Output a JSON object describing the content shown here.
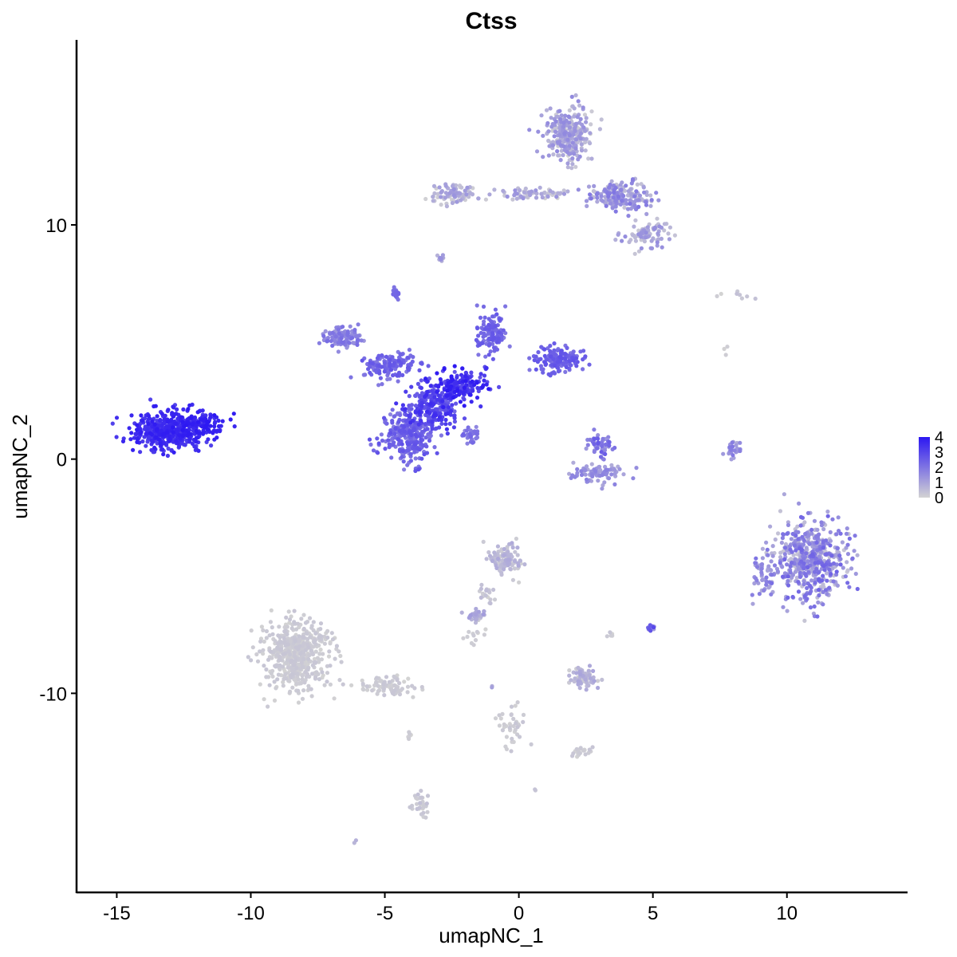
{
  "chart_data": {
    "type": "scatter",
    "title": "Ctss",
    "xlabel": "umapNC_1",
    "ylabel": "umapNC_2",
    "xlim": [
      -16.5,
      14.5
    ],
    "ylim": [
      -18.5,
      17.9
    ],
    "x_ticks": [
      -15,
      -10,
      -5,
      0,
      5,
      10
    ],
    "x_tick_labels": [
      "-15",
      "-10",
      "-5",
      "0",
      "5",
      "10"
    ],
    "y_ticks": [
      10,
      0,
      -10
    ],
    "y_tick_labels": [
      "10",
      "0",
      "-10"
    ],
    "grid": false,
    "legend": {
      "placement": "right",
      "type": "colorbar",
      "range": [
        0,
        4
      ],
      "ticks": [
        4,
        3,
        2,
        1,
        0
      ],
      "tick_labels": [
        "4",
        "3",
        "2",
        "1",
        "0"
      ]
    },
    "colors": {
      "low": "#d3d3d3",
      "high": "#2c17f2"
    },
    "clusters": [
      {
        "center": [
          -13.1,
          1.2
        ],
        "spread": [
          1.2,
          0.7
        ],
        "count": 420,
        "expr": [
          3.0,
          3.9
        ]
      },
      {
        "center": [
          -12.0,
          1.5
        ],
        "spread": [
          0.8,
          0.5
        ],
        "count": 120,
        "expr": [
          3.4,
          4.0
        ]
      },
      {
        "center": [
          -4.2,
          1.0
        ],
        "spread": [
          0.9,
          1.0
        ],
        "count": 260,
        "expr": [
          1.7,
          2.8
        ]
      },
      {
        "center": [
          -3.2,
          2.3
        ],
        "spread": [
          0.9,
          0.9
        ],
        "count": 240,
        "expr": [
          2.3,
          3.6
        ]
      },
      {
        "center": [
          -2.2,
          3.1
        ],
        "spread": [
          1.0,
          0.6
        ],
        "count": 160,
        "expr": [
          2.6,
          4.0
        ]
      },
      {
        "center": [
          -4.8,
          4.0
        ],
        "spread": [
          0.9,
          0.5
        ],
        "count": 140,
        "expr": [
          1.8,
          2.7
        ]
      },
      {
        "center": [
          -6.6,
          5.2
        ],
        "spread": [
          0.6,
          0.4
        ],
        "count": 110,
        "expr": [
          1.2,
          2.2
        ]
      },
      {
        "center": [
          -1.0,
          5.3
        ],
        "spread": [
          0.5,
          0.8
        ],
        "count": 120,
        "expr": [
          1.8,
          2.7
        ]
      },
      {
        "center": [
          1.5,
          4.3
        ],
        "spread": [
          0.9,
          0.5
        ],
        "count": 150,
        "expr": [
          1.9,
          2.8
        ]
      },
      {
        "center": [
          -4.6,
          7.1
        ],
        "spread": [
          0.15,
          0.2
        ],
        "count": 22,
        "expr": [
          1.8,
          2.4
        ]
      },
      {
        "center": [
          -1.8,
          1.0
        ],
        "spread": [
          0.4,
          0.4
        ],
        "count": 30,
        "expr": [
          1.6,
          2.4
        ]
      },
      {
        "center": [
          1.8,
          13.8
        ],
        "spread": [
          0.8,
          1.0
        ],
        "count": 280,
        "expr": [
          0.0,
          1.6
        ]
      },
      {
        "center": [
          3.8,
          11.2
        ],
        "spread": [
          1.0,
          0.6
        ],
        "count": 180,
        "expr": [
          0.3,
          2.0
        ]
      },
      {
        "center": [
          4.8,
          9.6
        ],
        "spread": [
          0.7,
          0.5
        ],
        "count": 80,
        "expr": [
          0.2,
          1.5
        ]
      },
      {
        "center": [
          -2.4,
          11.3
        ],
        "spread": [
          0.8,
          0.35
        ],
        "count": 90,
        "expr": [
          0.0,
          1.4
        ]
      },
      {
        "center": [
          0.5,
          11.3
        ],
        "spread": [
          1.2,
          0.25
        ],
        "count": 60,
        "expr": [
          0.0,
          1.4
        ]
      },
      {
        "center": [
          -2.9,
          8.6
        ],
        "spread": [
          0.1,
          0.15
        ],
        "count": 10,
        "expr": [
          0.5,
          1.8
        ]
      },
      {
        "center": [
          3.0,
          -0.6
        ],
        "spread": [
          0.9,
          0.35
        ],
        "count": 90,
        "expr": [
          0.8,
          1.8
        ]
      },
      {
        "center": [
          3.0,
          0.6
        ],
        "spread": [
          0.4,
          0.4
        ],
        "count": 50,
        "expr": [
          1.2,
          2.6
        ]
      },
      {
        "center": [
          8.0,
          0.4
        ],
        "spread": [
          0.25,
          0.4
        ],
        "count": 25,
        "expr": [
          0.8,
          2.0
        ]
      },
      {
        "center": [
          10.9,
          -4.3
        ],
        "spread": [
          1.2,
          1.5
        ],
        "count": 520,
        "expr": [
          0.2,
          2.4
        ]
      },
      {
        "center": [
          9.1,
          -5.0
        ],
        "spread": [
          0.4,
          0.8
        ],
        "count": 50,
        "expr": [
          0.8,
          2.0
        ]
      },
      {
        "center": [
          -8.3,
          -8.3
        ],
        "spread": [
          1.1,
          1.4
        ],
        "count": 520,
        "expr": [
          0.0,
          0.3
        ]
      },
      {
        "center": [
          -5.0,
          -9.7
        ],
        "spread": [
          1.1,
          0.35
        ],
        "count": 80,
        "expr": [
          0.0,
          0.3
        ]
      },
      {
        "center": [
          -0.5,
          -4.2
        ],
        "spread": [
          0.6,
          0.6
        ],
        "count": 110,
        "expr": [
          0.0,
          0.9
        ]
      },
      {
        "center": [
          -1.6,
          -6.7
        ],
        "spread": [
          0.4,
          0.25
        ],
        "count": 35,
        "expr": [
          0.0,
          1.2
        ]
      },
      {
        "center": [
          -1.2,
          -5.7
        ],
        "spread": [
          0.3,
          0.5
        ],
        "count": 20,
        "expr": [
          0.0,
          0.6
        ]
      },
      {
        "center": [
          2.4,
          -9.3
        ],
        "spread": [
          0.5,
          0.4
        ],
        "count": 75,
        "expr": [
          0.0,
          1.0
        ]
      },
      {
        "center": [
          5.0,
          -7.2
        ],
        "spread": [
          0.15,
          0.15
        ],
        "count": 12,
        "expr": [
          1.2,
          3.0
        ]
      },
      {
        "center": [
          -0.2,
          -11.3
        ],
        "spread": [
          0.5,
          0.8
        ],
        "count": 40,
        "expr": [
          0.0,
          0.3
        ]
      },
      {
        "center": [
          2.3,
          -12.5
        ],
        "spread": [
          0.3,
          0.2
        ],
        "count": 20,
        "expr": [
          0.0,
          0.3
        ]
      },
      {
        "center": [
          -3.7,
          -14.8
        ],
        "spread": [
          0.3,
          0.5
        ],
        "count": 30,
        "expr": [
          0.0,
          0.4
        ]
      },
      {
        "center": [
          -1.6,
          -7.6
        ],
        "spread": [
          0.4,
          0.4
        ],
        "count": 12,
        "expr": [
          0.0,
          0.2
        ]
      },
      {
        "center": [
          3.4,
          -7.5
        ],
        "spread": [
          0.1,
          0.1
        ],
        "count": 6,
        "expr": [
          0.0,
          0.3
        ]
      },
      {
        "center": [
          -4.1,
          -11.8
        ],
        "spread": [
          0.08,
          0.15
        ],
        "count": 6,
        "expr": [
          0.0,
          0.2
        ]
      },
      {
        "center": [
          8.3,
          6.9
        ],
        "spread": [
          1.2,
          0.25
        ],
        "count": 8,
        "expr": [
          0.0,
          0.4
        ]
      },
      {
        "center": [
          7.7,
          4.7
        ],
        "spread": [
          0.05,
          0.15
        ],
        "count": 3,
        "expr": [
          0.0,
          0.2
        ]
      },
      {
        "center": [
          -1.0,
          -9.7
        ],
        "spread": [
          0.05,
          0.05
        ],
        "count": 2,
        "expr": [
          0.8,
          1.2
        ]
      },
      {
        "center": [
          -6.1,
          -16.3
        ],
        "spread": [
          0.05,
          0.05
        ],
        "count": 2,
        "expr": [
          0.4,
          0.8
        ]
      },
      {
        "center": [
          0.6,
          -14.1
        ],
        "spread": [
          0.05,
          0.05
        ],
        "count": 2,
        "expr": [
          0.0,
          0.5
        ]
      }
    ]
  }
}
